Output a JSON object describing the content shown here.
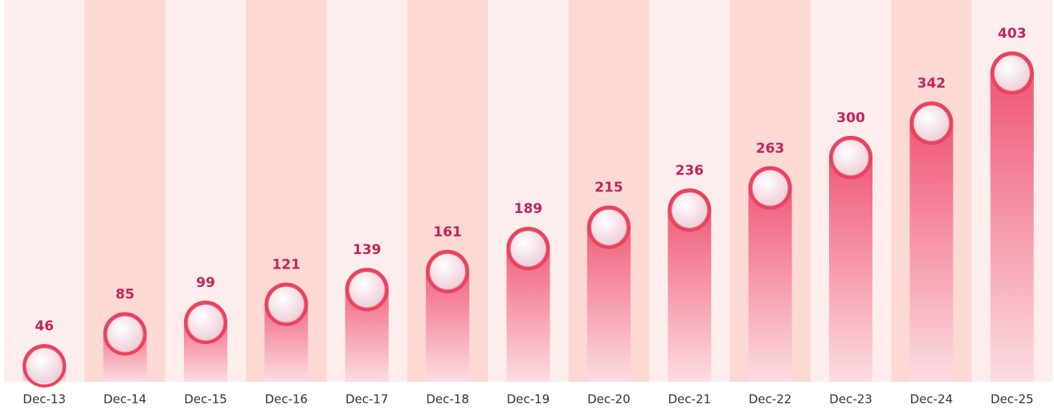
{
  "chart_data": {
    "type": "bar",
    "categories": [
      "Dec-13",
      "Dec-14",
      "Dec-15",
      "Dec-16",
      "Dec-17",
      "Dec-18",
      "Dec-19",
      "Dec-20",
      "Dec-21",
      "Dec-22",
      "Dec-23",
      "Dec-24",
      "Dec-25"
    ],
    "values": [
      46,
      85,
      99,
      121,
      139,
      161,
      189,
      215,
      236,
      263,
      300,
      342,
      403
    ],
    "color": "#ef4d6e"
  }
}
